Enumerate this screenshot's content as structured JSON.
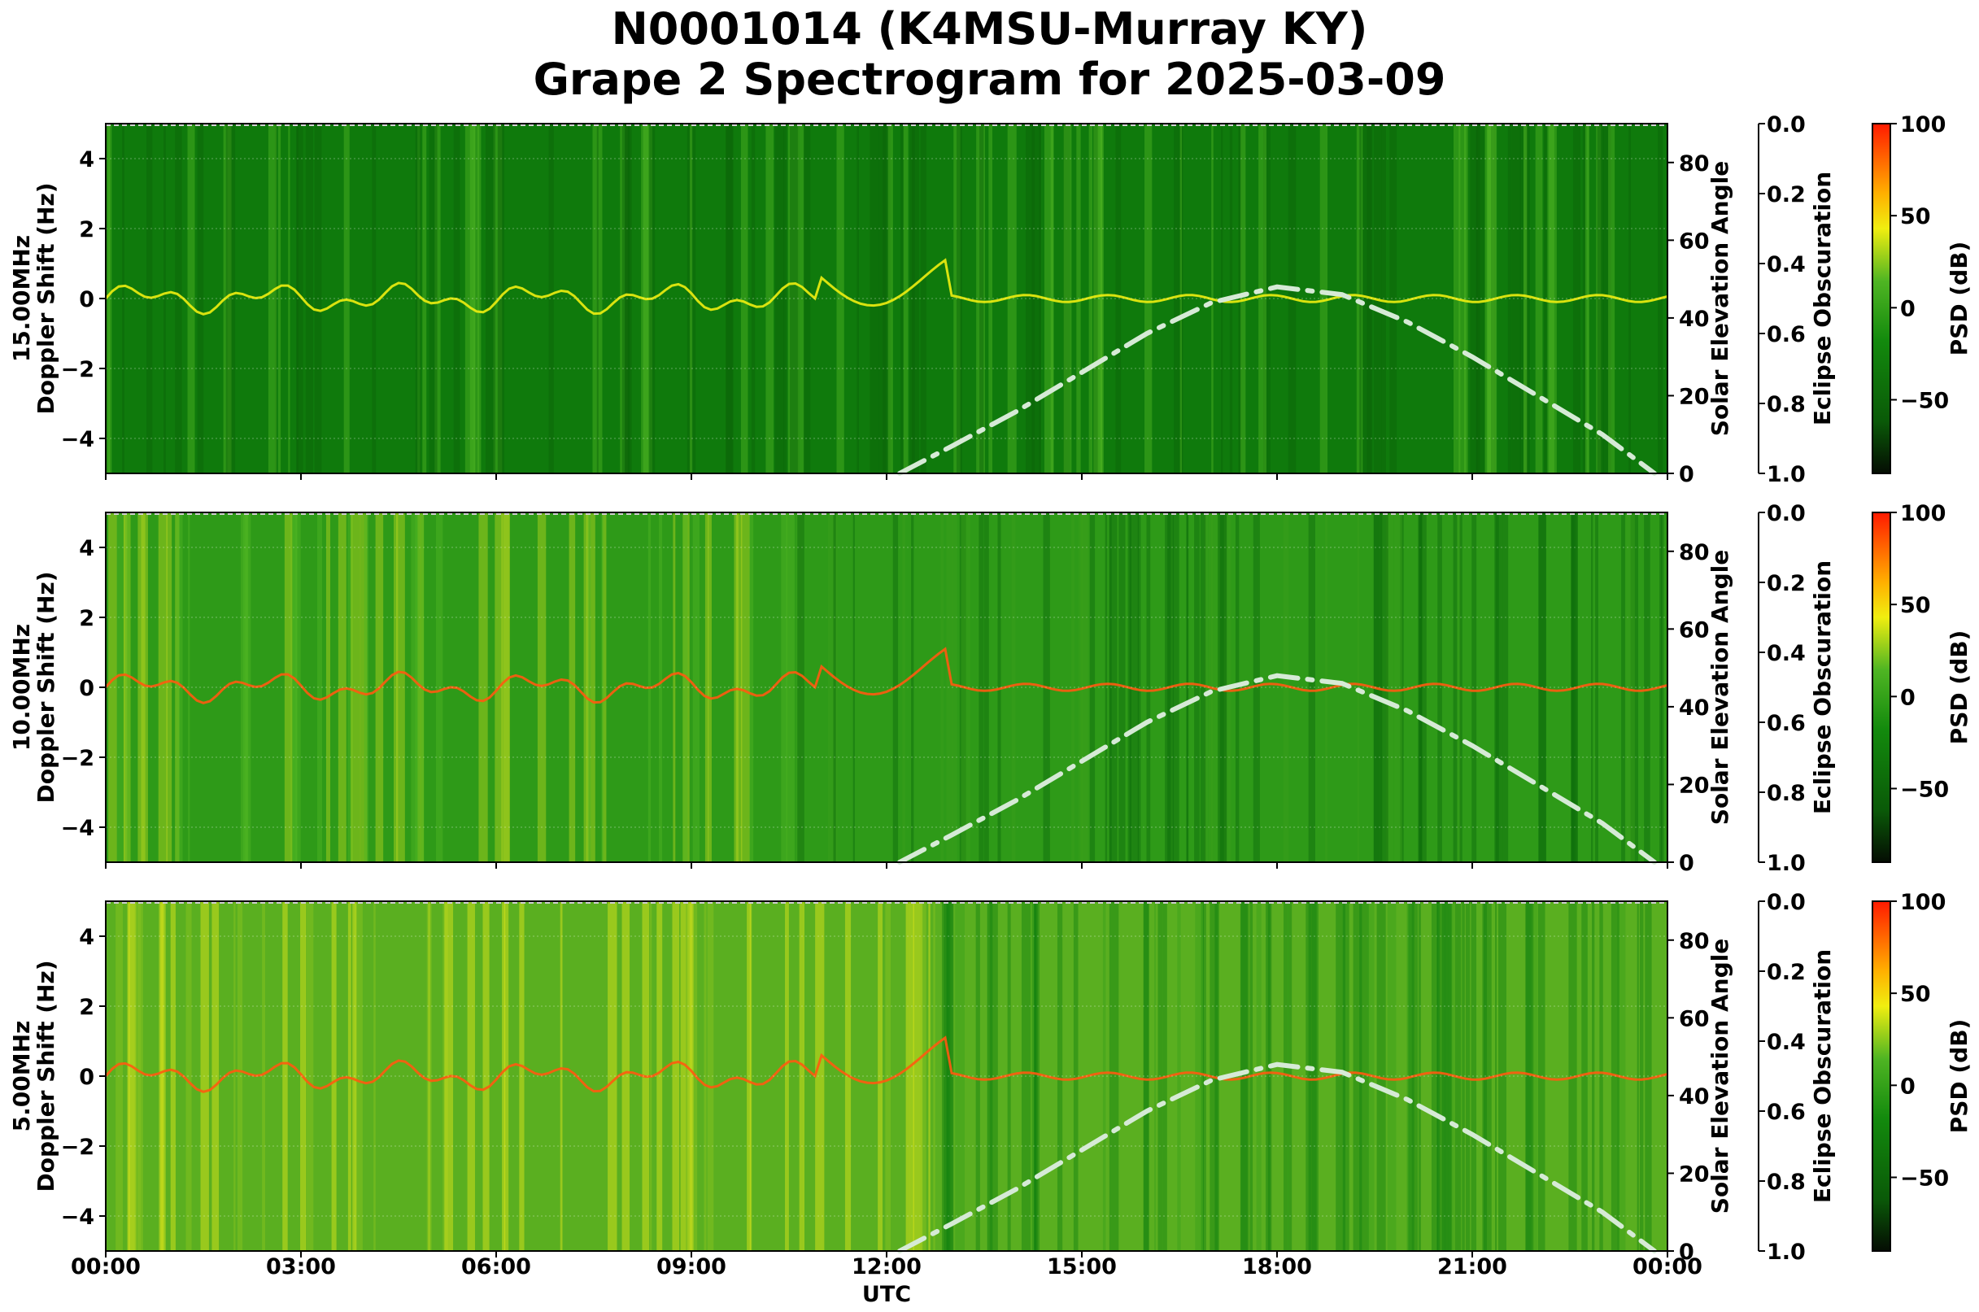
{
  "title_line1": "N0001014 (K4MSU-Murray KY)",
  "title_line2": "Grape 2 Spectrogram for 2025-03-09",
  "chart_data": {
    "type": "heatmap",
    "x_label": "UTC",
    "x_ticks": [
      "00:00",
      "03:00",
      "06:00",
      "09:00",
      "12:00",
      "15:00",
      "18:00",
      "21:00",
      "00:00"
    ],
    "x_range_hours": [
      0,
      24
    ],
    "y_ticks": [
      "4",
      "2",
      "0",
      "−2",
      "−4"
    ],
    "y_range": [
      -5,
      5
    ],
    "elevation_label": "Solar Elevation Angle",
    "elevation_ticks": [
      "80",
      "60",
      "40",
      "20",
      "0"
    ],
    "elevation_range": [
      0,
      90
    ],
    "obscuration_label": "Eclipse Obscuration",
    "obscuration_ticks": [
      "0.0",
      "0.2",
      "0.4",
      "0.6",
      "0.8",
      "1.0"
    ],
    "psd_label": "PSD (dB)",
    "psd_ticks": [
      "100",
      "50",
      "0",
      "−50"
    ],
    "psd_range": [
      -90,
      100
    ],
    "colors": {
      "low": "#0a1a05",
      "mid_low": "#0a6e0a",
      "mid": "#2fa01a",
      "high": "#f0ee10",
      "max": "#ff1a00",
      "elevation_curve": "#d6ead6"
    },
    "elevation_curve": {
      "hours": [
        12.2,
        13,
        14,
        15,
        16,
        17,
        18,
        19,
        20,
        21,
        22,
        23,
        23.8
      ],
      "degrees": [
        0,
        7,
        16,
        26,
        36,
        44,
        48,
        46,
        39,
        30,
        20,
        10,
        0
      ]
    },
    "panels": [
      {
        "frequency_label": "15.00MHz",
        "y_label": "Doppler Shift (Hz)"
      },
      {
        "frequency_label": "10.00MHz",
        "y_label": "Doppler Shift (Hz)"
      },
      {
        "frequency_label": "5.00MHz",
        "y_label": "Doppler Shift (Hz)"
      }
    ]
  }
}
